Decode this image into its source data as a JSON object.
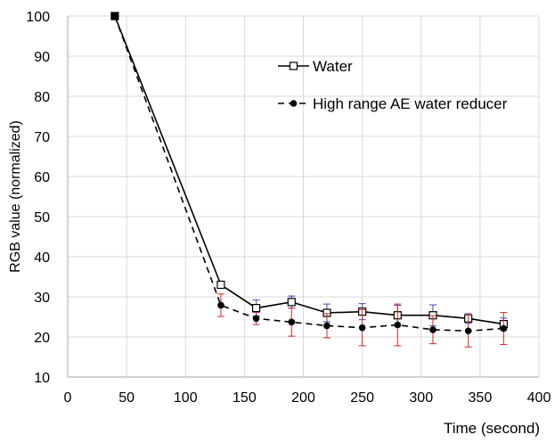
{
  "chart_data": {
    "type": "line",
    "title": "",
    "xlabel": "Time (second)",
    "ylabel": "RGB value (normalized)",
    "xlim": [
      0,
      400
    ],
    "ylim": [
      10,
      100
    ],
    "x_ticks": [
      0,
      50,
      100,
      150,
      200,
      250,
      300,
      350,
      400
    ],
    "y_ticks": [
      10,
      20,
      30,
      40,
      50,
      60,
      70,
      80,
      90,
      100
    ],
    "grid": "on",
    "legend_position": "top-right",
    "series": [
      {
        "name": "Water",
        "line_style": "solid",
        "marker": "open-square",
        "color": "#000000",
        "error_bar_color": "#3b4fbf",
        "points": [
          {
            "x": 40,
            "y": 100,
            "err": 0
          },
          {
            "x": 130,
            "y": 33,
            "err": 0.8
          },
          {
            "x": 160,
            "y": 27.2,
            "err": 2.0
          },
          {
            "x": 190,
            "y": 28.7,
            "err": 1.5
          },
          {
            "x": 220,
            "y": 26,
            "err": 2.2
          },
          {
            "x": 250,
            "y": 26.3,
            "err": 2.0
          },
          {
            "x": 280,
            "y": 25.4,
            "err": 2.5
          },
          {
            "x": 310,
            "y": 25.4,
            "err": 2.6
          },
          {
            "x": 340,
            "y": 24.6,
            "err": 1.2
          },
          {
            "x": 370,
            "y": 23.2,
            "err": 1.5
          }
        ]
      },
      {
        "name": "High range AE water reducer",
        "line_style": "dashed",
        "marker": "filled-circle",
        "color": "#000000",
        "error_bar_color": "#d12a2a",
        "points": [
          {
            "x": 40,
            "y": 100,
            "err": 0
          },
          {
            "x": 130,
            "y": 27.9,
            "err": 2.8
          },
          {
            "x": 160,
            "y": 24.6,
            "err": 1.5
          },
          {
            "x": 190,
            "y": 23.7,
            "err": 3.5
          },
          {
            "x": 220,
            "y": 22.8,
            "err": 3.0
          },
          {
            "x": 250,
            "y": 22.3,
            "err": 4.5
          },
          {
            "x": 280,
            "y": 23,
            "err": 5.2
          },
          {
            "x": 310,
            "y": 21.8,
            "err": 3.5
          },
          {
            "x": 340,
            "y": 21.5,
            "err": 4.0
          },
          {
            "x": 370,
            "y": 22.1,
            "err": 4.0
          }
        ]
      }
    ]
  }
}
